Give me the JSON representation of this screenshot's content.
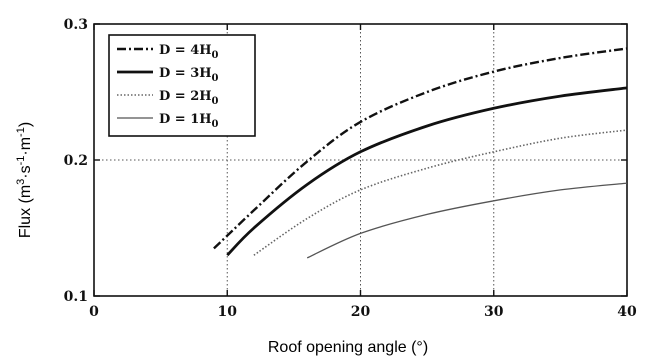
{
  "chart_data": {
    "type": "line",
    "xlabel": "Roof opening angle (°)",
    "ylabel_parts": [
      "Flux (m",
      "3",
      "·s",
      "-1",
      "·m",
      "-1",
      ")"
    ],
    "xlim": [
      0,
      40
    ],
    "ylim": [
      0.1,
      0.3
    ],
    "xticks": [
      0,
      10,
      20,
      30,
      40
    ],
    "xtick_labels": [
      "0",
      "10",
      "20",
      "30",
      "40"
    ],
    "yticks": [
      0.1,
      0.2,
      0.3
    ],
    "ytick_labels": [
      "0.1",
      "0.2",
      "0.3"
    ],
    "grid": true,
    "legend_position": "top-left",
    "series": [
      {
        "legend_main": "D = 4H",
        "legend_sub": "0",
        "style": "dashdot",
        "color": "#111111",
        "x": [
          9,
          12,
          16,
          20,
          25,
          30,
          35,
          40
        ],
        "y": [
          0.135,
          0.163,
          0.199,
          0.228,
          0.25,
          0.265,
          0.275,
          0.282
        ]
      },
      {
        "legend_main": "D = 3H",
        "legend_sub": "0",
        "style": "solid-thick",
        "color": "#111111",
        "x": [
          10,
          12,
          16,
          20,
          25,
          30,
          35,
          40
        ],
        "y": [
          0.13,
          0.15,
          0.182,
          0.206,
          0.225,
          0.238,
          0.247,
          0.253
        ]
      },
      {
        "legend_main": "D = 2H",
        "legend_sub": "0",
        "style": "dotted",
        "color": "#666666",
        "x": [
          12,
          16,
          20,
          25,
          30,
          35,
          40
        ],
        "y": [
          0.13,
          0.157,
          0.178,
          0.194,
          0.206,
          0.216,
          0.222
        ]
      },
      {
        "legend_main": "D = 1H",
        "legend_sub": "0",
        "style": "solid-thin",
        "color": "#555555",
        "x": [
          16,
          20,
          25,
          30,
          35,
          40
        ],
        "y": [
          0.128,
          0.146,
          0.16,
          0.17,
          0.178,
          0.183
        ]
      }
    ]
  }
}
